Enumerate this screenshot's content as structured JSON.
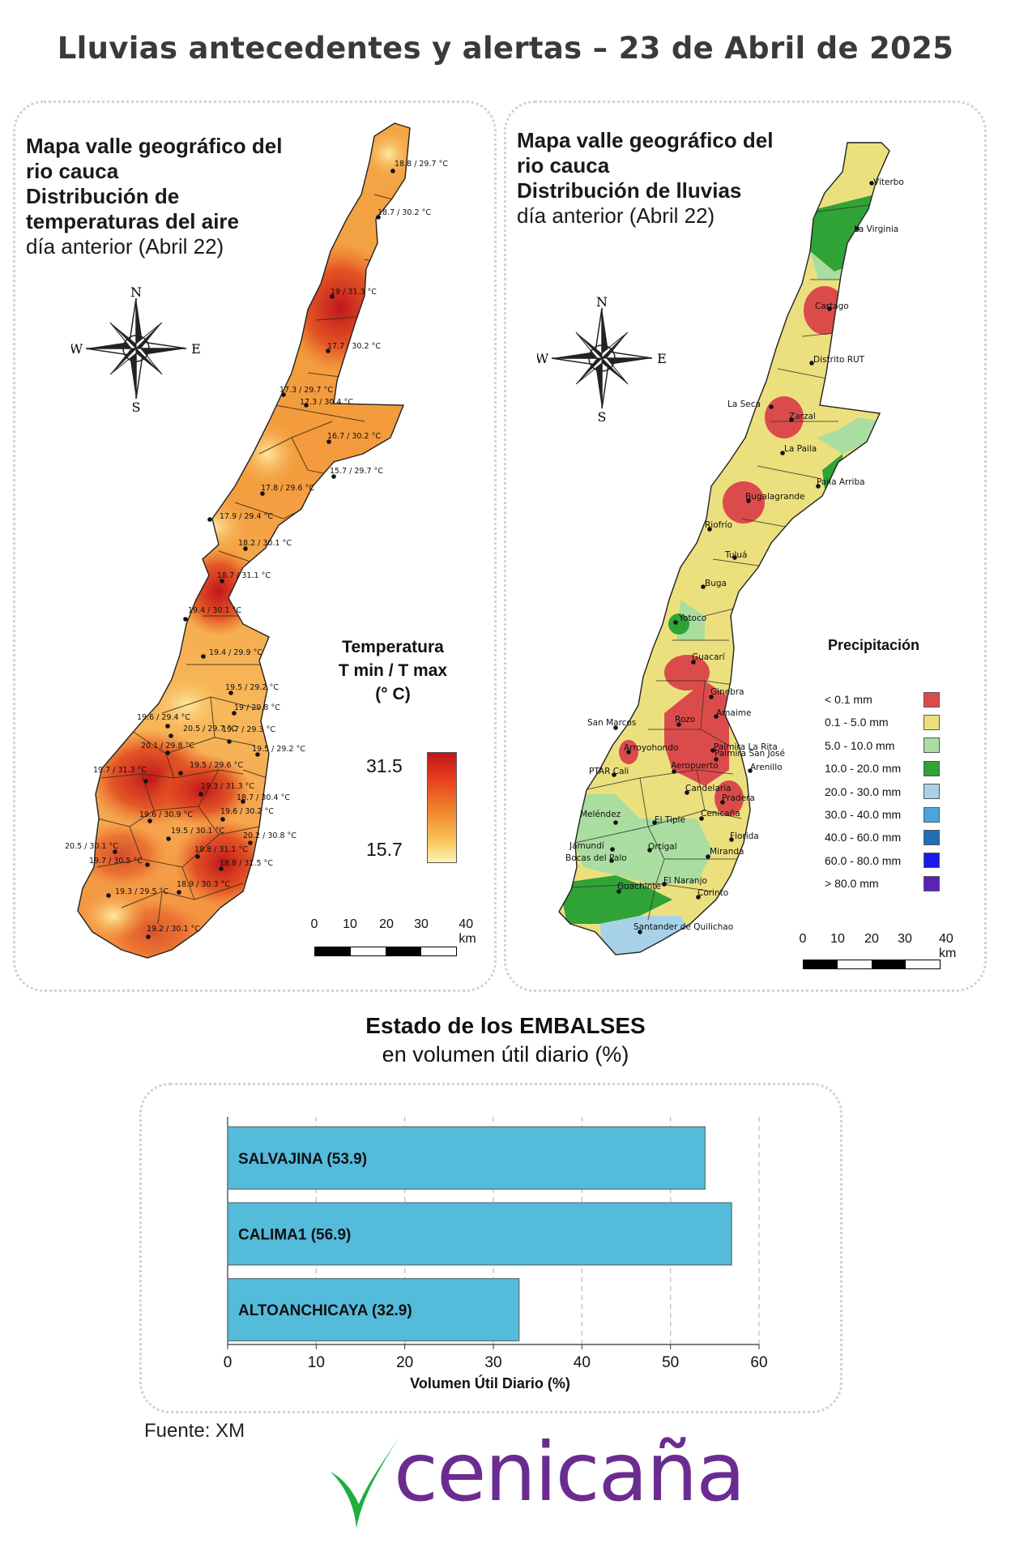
{
  "header": {
    "title": "Lluvias antecedentes y alertas – 23 de Abril de 2025"
  },
  "temp_panel": {
    "title_line1": "Mapa valle geográfico del",
    "title_line2": "rio cauca",
    "title_line3": "Distribución de",
    "title_line4": "temperaturas del aire",
    "subtitle": "día anterior (Abril 22)",
    "legend": {
      "title1": "Temperatura",
      "title2": "T min / T max",
      "title3": "(° C)",
      "max_value": "31.5",
      "min_value": "15.7"
    },
    "stations": [
      "18.8 / 29.7 °C",
      "18.7 / 30.2 °C",
      "19 / 31.3 °C",
      "17.7 / 30.2 °C",
      "17.3 / 29.7 °C",
      "17.3 / 30.4 °C",
      "16.7 / 30.2 °C",
      "15.7 / 29.7 °C",
      "17.8 / 29.6 °C",
      "17.9 / 29.4 °C",
      "18.2 / 30.1 °C",
      "18.7 / 31.1 °C",
      "19.4 / 30.1 °C",
      "19.4 / 29.9 °C",
      "19.5 / 29.2 °C",
      "19 / 29.8 °C",
      "19.6 / 29.4 °C",
      "20.5 / 29.7 °C",
      "19.7 / 29.3 °C",
      "20.1 / 29.8 °C",
      "19.5 / 29.2 °C",
      "19.5 / 29.6 °C",
      "19.7 / 31.3 °C",
      "19.3 / 31.3 °C",
      "18.7 / 30.4 °C",
      "19.6 / 30.9 °C",
      "19.6 / 30.2 °C",
      "19.5 / 30.1 °C",
      "20.2 / 30.8 °C",
      "20.5 / 30.1 °C",
      "19.8 / 31.1 °C",
      "19.7 / 30.5 °C",
      "18.8 / 31.5 °C",
      "19.3 / 29.5 °C",
      "18.9 / 30.3 °C",
      "19.2 / 30.1 °C"
    ],
    "colors": {
      "high": "#c0161b",
      "mid": "#f28a2e",
      "low": "#fff5b8"
    }
  },
  "rain_panel": {
    "title_line1": "Mapa valle geográfico del",
    "title_line2": "rio cauca",
    "title_line3": "Distribución de lluvias",
    "subtitle": "día anterior (Abril 22)",
    "legend_title": "Precipitación",
    "legend": [
      {
        "label": "< 0.1 mm",
        "color": "#dc4b4b"
      },
      {
        "label": "0.1 - 5.0 mm",
        "color": "#ece07e"
      },
      {
        "label": "5.0 - 10.0 mm",
        "color": "#aadea0"
      },
      {
        "label": "10.0 - 20.0 mm",
        "color": "#2fa336"
      },
      {
        "label": "20.0 - 30.0 mm",
        "color": "#a8d2e8"
      },
      {
        "label": "30.0 - 40.0 mm",
        "color": "#4aa5e0"
      },
      {
        "label": "40.0 - 60.0 mm",
        "color": "#1f6fb4"
      },
      {
        "label": "60.0 - 80.0 mm",
        "color": "#1a1ae8"
      },
      {
        "label": "> 80.0 mm",
        "color": "#5a22b5"
      }
    ],
    "places": [
      "Viterbo",
      "La Virginia",
      "Cartago",
      "Distrito RUT",
      "La Seca",
      "Zarzal",
      "La Paila",
      "Paila Arriba",
      "Bugalagrande",
      "Riofrío",
      "Tuluá",
      "Buga",
      "Yotoco",
      "Guacarí",
      "Ginebra",
      "San Marcos",
      "Rozo",
      "Amaime",
      "Palmira La Rita",
      "Arroyohondo",
      "Palmira San José",
      "Arenillo",
      "PTAR Cali",
      "Aeropuerto",
      "Candelaria",
      "Pradera",
      "Meléndez",
      "El Tiple",
      "Cenicaña",
      "Jamundí",
      "Bocas del Palo",
      "Ortigal",
      "Florida",
      "Miranda",
      "Guachinte",
      "El Naranjo",
      "Corinto",
      "Santander de Quilichao"
    ]
  },
  "compass": {
    "north": "N",
    "south": "S",
    "east": "E",
    "west": "W"
  },
  "scale_bar": {
    "ticks": [
      "0",
      "10",
      "20",
      "30",
      "40 km"
    ]
  },
  "reservoirs": {
    "title": "Estado de los EMBALSES",
    "subtitle": "en volumen útil diario (%)"
  },
  "chart_data": {
    "type": "bar",
    "orientation": "horizontal",
    "categories": [
      "SALVAJINA (53.9)",
      "CALIMA1 (56.9)",
      "ALTOANCHICAYA (32.9)"
    ],
    "values": [
      53.9,
      56.9,
      32.9
    ],
    "xlabel": "Volumen Útil Diario (%)",
    "xlim": [
      0,
      60
    ],
    "xticks": [
      "0",
      "10",
      "20",
      "30",
      "40",
      "50",
      "60"
    ],
    "grid": "vertical dashed",
    "bar_color": "#55bbdb"
  },
  "footer": {
    "source": "Fuente: XM",
    "logo_text": "cenicaña",
    "logo_color": "#6b2c91",
    "leaf_color": "#1fae3c"
  }
}
